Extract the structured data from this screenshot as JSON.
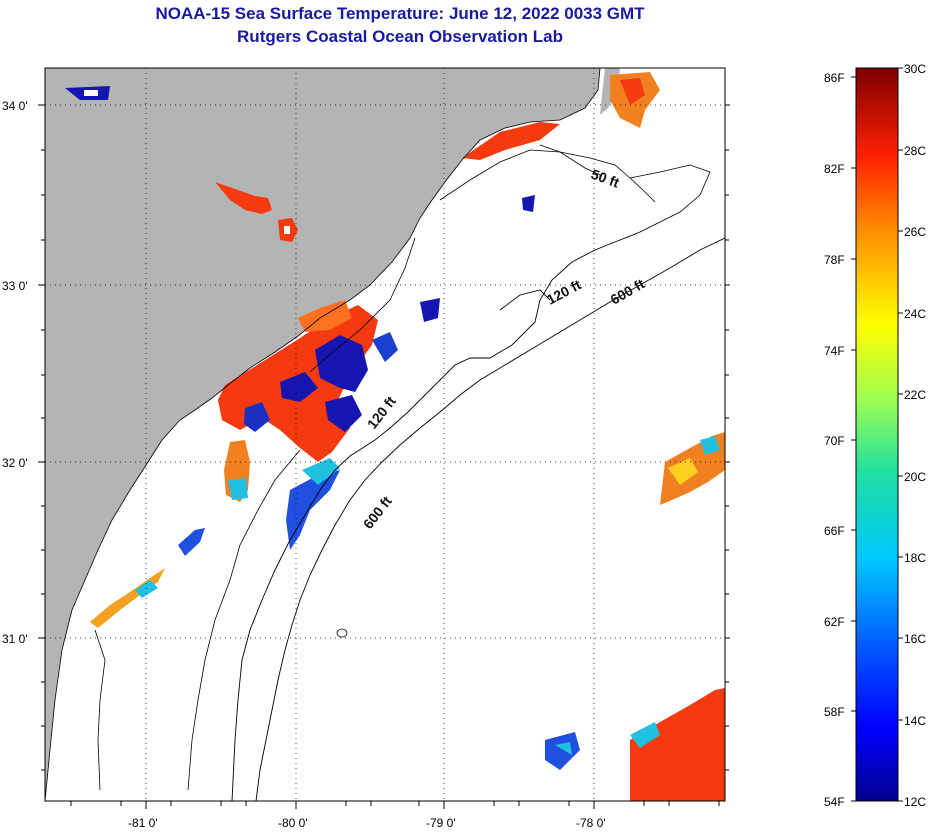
{
  "header": {
    "title": "NOAA-15 Sea Surface Temperature:  June 12, 2022 0033 GMT",
    "subtitle": "Rutgers Coastal Ocean Observation Lab"
  },
  "axes": {
    "lon_ticks": [
      "-81 0'",
      "-80 0'",
      "-79 0'",
      "-78 0'"
    ],
    "lat_ticks": [
      "34 0'",
      "33 0'",
      "32 0'",
      "31 0'"
    ]
  },
  "contours": {
    "c50": "50 ft",
    "c120a": "120 ft",
    "c120b": "120 ft",
    "c600a": "600 ft",
    "c600b": "600 ft"
  },
  "colorbar": {
    "fahrenheit": [
      "86F",
      "82F",
      "78F",
      "74F",
      "70F",
      "66F",
      "62F",
      "58F",
      "54F"
    ],
    "celsius": [
      "30C",
      "28C",
      "26C",
      "24C",
      "22C",
      "20C",
      "18C",
      "16C",
      "14C",
      "12C"
    ]
  },
  "colors": {
    "land": "#b4b4b4",
    "water": "#ffffff",
    "warm": "#f53a10",
    "cold": "#1515b0",
    "mid": "#20c0e0"
  }
}
